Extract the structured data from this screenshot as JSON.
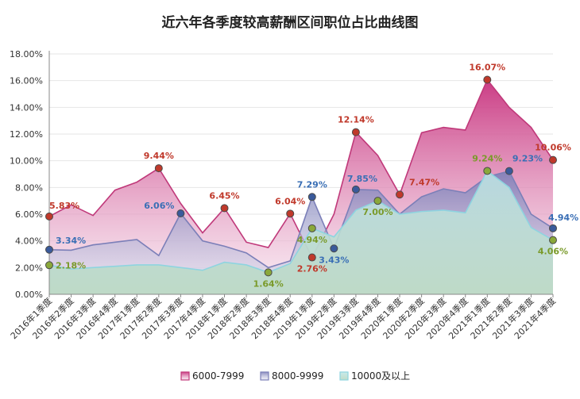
{
  "chart_data": {
    "type": "area",
    "title": "近六年各季度较高薪酬区间职位占比曲线图",
    "xlabel": "",
    "ylabel": "",
    "ylim": [
      0,
      18
    ],
    "y_ticks": [
      "0.00%",
      "2.00%",
      "4.00%",
      "6.00%",
      "8.00%",
      "10.00%",
      "12.00%",
      "14.00%",
      "16.00%",
      "18.00%"
    ],
    "y_tick_values": [
      0,
      2,
      4,
      6,
      8,
      10,
      12,
      14,
      16,
      18
    ],
    "grid": true,
    "legend_position": "bottom",
    "categories": [
      "2016年1季度",
      "2016年2季度",
      "2016年3季度",
      "2016年4季度",
      "2017年1季度",
      "2017年2季度",
      "2017年3季度",
      "2017年4季度",
      "2018年1季度",
      "2018年2季度",
      "2018年3季度",
      "2018年4季度",
      "2019年1季度",
      "2019年2季度",
      "2019年3季度",
      "2019年4季度",
      "2020年1季度",
      "2020年2季度",
      "2020年3季度",
      "2020年4季度",
      "2021年1季度",
      "2021年2季度",
      "2021年3季度",
      "2021年4季度"
    ],
    "series": [
      {
        "name": "6000-7999",
        "color": "#c0397a",
        "label_color": "#c0392b",
        "marker_color": "#c0392b",
        "values": [
          5.83,
          6.7,
          5.9,
          7.8,
          8.4,
          9.44,
          6.8,
          4.6,
          6.45,
          3.9,
          3.5,
          6.04,
          2.76,
          6.0,
          12.14,
          10.4,
          7.47,
          12.1,
          12.5,
          12.3,
          16.07,
          14.0,
          12.5,
          10.06
        ],
        "markers": [
          {
            "index": 0,
            "label": "5.83%"
          },
          {
            "index": 5,
            "label": "9.44%"
          },
          {
            "index": 8,
            "label": "6.45%"
          },
          {
            "index": 11,
            "label": "6.04%"
          },
          {
            "index": 12,
            "label": "2.76%"
          },
          {
            "index": 14,
            "label": "12.14%"
          },
          {
            "index": 16,
            "label": "7.47%"
          },
          {
            "index": 20,
            "label": "16.07%"
          },
          {
            "index": 23,
            "label": "10.06%"
          }
        ]
      },
      {
        "name": "8000-9999",
        "color": "#7b7fb8",
        "label_color": "#3a6fb5",
        "marker_color": "#3a5a9b",
        "values": [
          3.34,
          3.3,
          3.7,
          3.9,
          4.1,
          2.9,
          6.06,
          4.0,
          3.6,
          3.1,
          2.0,
          2.5,
          7.29,
          3.43,
          7.85,
          7.8,
          6.0,
          7.3,
          7.9,
          7.6,
          8.8,
          9.23,
          6.0,
          4.94
        ],
        "markers": [
          {
            "index": 0,
            "label": "3.34%"
          },
          {
            "index": 6,
            "label": "6.06%"
          },
          {
            "index": 12,
            "label": "7.29%"
          },
          {
            "index": 13,
            "label": "3.43%"
          },
          {
            "index": 14,
            "label": "7.85%"
          },
          {
            "index": 21,
            "label": "9.23%"
          },
          {
            "index": 23,
            "label": "4.94%"
          }
        ]
      },
      {
        "name": "10000及以上",
        "color": "#8ed4e0",
        "label_color": "#7a9a2a",
        "marker_color": "#8aa83a",
        "values": [
          2.18,
          1.9,
          2.0,
          2.1,
          2.2,
          2.2,
          2.0,
          1.8,
          2.4,
          2.2,
          1.64,
          2.3,
          4.94,
          4.3,
          6.3,
          7.0,
          6.0,
          6.2,
          6.3,
          6.1,
          9.24,
          8.0,
          5.0,
          4.06
        ],
        "markers": [
          {
            "index": 0,
            "label": "2.18%"
          },
          {
            "index": 10,
            "label": "1.64%"
          },
          {
            "index": 12,
            "label": "4.94%"
          },
          {
            "index": 15,
            "label": "7.00%"
          },
          {
            "index": 20,
            "label": "9.24%"
          },
          {
            "index": 23,
            "label": "4.06%"
          }
        ]
      }
    ]
  }
}
